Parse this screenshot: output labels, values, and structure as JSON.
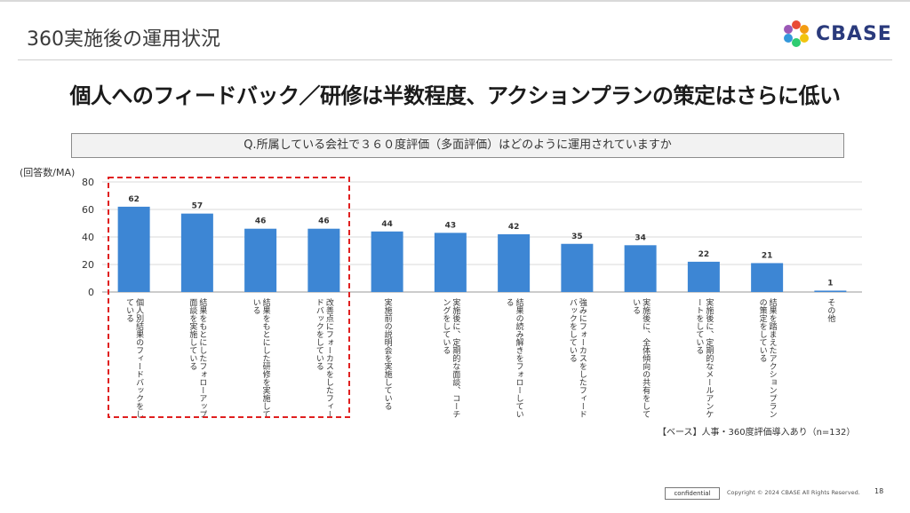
{
  "header": {
    "title": "360実施後の運用状況",
    "logo_text": "CBASE",
    "logo_colors": [
      "#e94b35",
      "#f39c12",
      "#f1c40f",
      "#2ecc71",
      "#3498db",
      "#9b59b6"
    ]
  },
  "headline": "個人へのフィードバック／研修は半数程度、アクションプランの策定はさらに低い",
  "question": "Q.所属している会社で３６０度評価（多面評価）はどのように運用されていますか",
  "unit_label": "(回答数/MA)",
  "chart_data": {
    "type": "bar",
    "categories": [
      "個人別結果のフィードバックをしている",
      "結果をもとにしたフォローアップ面談を実施している",
      "結果をもとにした研修を実施している",
      "改善点にフォーカスをしたフィードバックをしている",
      "実施前の説明会を実施している",
      "実施後に、定期的な面談、コーチングをしている",
      "結果の読み解きをフォローしている",
      "強みにフォーカスをしたフィードバックをしている",
      "実施後に、全体傾向の共有をしている",
      "実施後に、定期的なメールアンケートをしている",
      "結果を踏まえたアクションプランの策定をしている",
      "その他"
    ],
    "values": [
      62,
      57,
      46,
      46,
      44,
      43,
      42,
      35,
      34,
      22,
      21,
      1
    ],
    "ylim": [
      0,
      80
    ],
    "yticks": [
      0,
      20,
      40,
      60,
      80
    ],
    "bar_color": "#3d86d4",
    "highlight_indices": [
      0,
      1,
      2,
      3
    ],
    "highlight_color": "#e02020",
    "grid": true
  },
  "base_note": "【ベース】人事・360度評価導入あり（n=132）",
  "footer": {
    "confidential": "confidential",
    "copyright": "Copyright © 2024 CBASE All Rights Reserved.",
    "page": "18"
  }
}
